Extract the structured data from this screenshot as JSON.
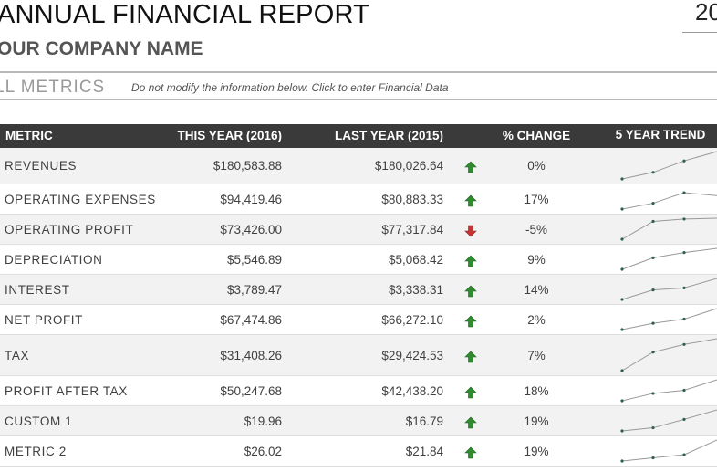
{
  "report": {
    "title": "ANNUAL FINANCIAL REPORT",
    "year_fragment": "20",
    "company": "OUR COMPANY NAME",
    "section": "LL METRICS",
    "note": "Do not modify the information below. Click to enter Financial Data"
  },
  "table": {
    "headers": {
      "metric": "METRIC",
      "this_year": "THIS YEAR (2016)",
      "last_year": "LAST YEAR (2015)",
      "change": "% CHANGE",
      "trend": "5 YEAR TREND"
    },
    "colors": {
      "up": "#2e8b2e",
      "down": "#c83232",
      "spark_line": "#999999",
      "spark_point": "#2f5f4f"
    },
    "rows": [
      {
        "metric": "REVENUES",
        "this_year": "$180,583.88",
        "last_year": "$180,026.64",
        "direction": "up",
        "change": "0%",
        "trend": [
          0,
          0.24,
          0.66,
          1.0
        ]
      },
      {
        "metric": "OPERATING EXPENSES",
        "this_year": "$94,419.46",
        "last_year": "$80,883.33",
        "direction": "up",
        "change": "17%",
        "trend": [
          0,
          0.28,
          0.78,
          0.64
        ]
      },
      {
        "metric": "OPERATING PROFIT",
        "this_year": "$73,426.00",
        "last_year": "$77,317.84",
        "direction": "down",
        "change": "-5%",
        "trend": [
          0,
          0.85,
          0.96,
          1.0
        ]
      },
      {
        "metric": "DEPRECIATION",
        "this_year": "$5,546.89",
        "last_year": "$5,068.42",
        "direction": "up",
        "change": "9%",
        "trend": [
          0,
          0.55,
          0.8,
          1.0
        ]
      },
      {
        "metric": "INTEREST",
        "this_year": "$3,789.47",
        "last_year": "$3,338.31",
        "direction": "up",
        "change": "14%",
        "trend": [
          0,
          0.45,
          0.55,
          1.0
        ]
      },
      {
        "metric": "NET PROFIT",
        "this_year": "$67,474.86",
        "last_year": "$66,272.10",
        "direction": "up",
        "change": "2%",
        "trend": [
          0,
          0.3,
          0.5,
          1.0
        ]
      },
      {
        "metric": "TAX",
        "this_year": "$31,408.26",
        "last_year": "$29,424.53",
        "direction": "up",
        "change": "7%",
        "trend": [
          0,
          0.58,
          0.82,
          1.0
        ]
      },
      {
        "metric": "PROFIT AFTER TAX",
        "this_year": "$50,247.68",
        "last_year": "$42,438.20",
        "direction": "up",
        "change": "18%",
        "trend": [
          0,
          0.35,
          0.5,
          1.0
        ]
      },
      {
        "metric": "CUSTOM 1",
        "this_year": "$19.96",
        "last_year": "$16.79",
        "direction": "up",
        "change": "19%",
        "trend": [
          0,
          0.15,
          0.55,
          1.0
        ]
      },
      {
        "metric": "METRIC 2",
        "this_year": "$26.02",
        "last_year": "$21.84",
        "direction": "up",
        "change": "19%",
        "trend": [
          0,
          0.15,
          0.3,
          1.0
        ]
      }
    ]
  }
}
